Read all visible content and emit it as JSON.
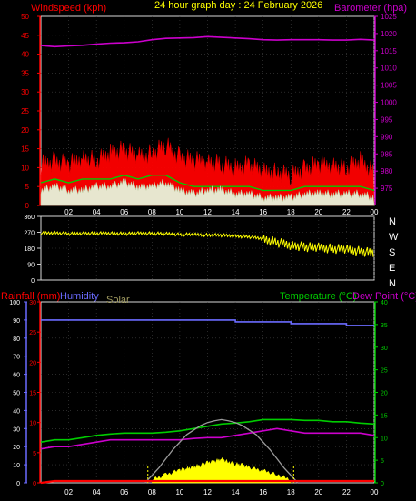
{
  "header": {
    "left_title": "Windspeed (kph)",
    "center_title": "24 hour graph day : 24 February 2026",
    "right_title": "Barometer (hpa)"
  },
  "bottom_header": {
    "rainfall": "Rainfall (mm)",
    "humidity": "Humidity",
    "solar": "Solar",
    "temperature": "Temperature (°C)",
    "dewpoint": "Dew Point (°C)"
  },
  "compass": [
    "N",
    "W",
    "S",
    "E",
    "N"
  ],
  "colors": {
    "wind": "#ff0000",
    "gust": "#ff0000",
    "wind_avg": "#e6ffe6",
    "wind_green": "#00cc00",
    "barometer": "#cc00cc",
    "direction": "#ffff00",
    "humidity": "#6b6bff",
    "temperature": "#00cc00",
    "dewpoint": "#cc00cc",
    "rain": "#ff0000",
    "solar": "#ffff00",
    "solar_theory": "#9a9a9a",
    "grid": "#ffffff",
    "axis_left": "#ff0000",
    "axis_right": "#cc00cc",
    "axis_temp": "#00cc00",
    "axis_hum": "#6b6bff"
  },
  "chart_data": [
    {
      "type": "line",
      "name": "wind-barometer",
      "title": "24 hour graph day : 24 February 2026",
      "x_ticks": [
        "02",
        "04",
        "06",
        "08",
        "10",
        "12",
        "14",
        "16",
        "18",
        "20",
        "22",
        "00"
      ],
      "xlim": [
        0,
        24
      ],
      "y_left": {
        "label": "Windspeed (kph)",
        "range": [
          0,
          50
        ],
        "ticks": [
          0,
          5,
          10,
          15,
          20,
          25,
          30,
          35,
          40,
          45,
          50
        ]
      },
      "y_right": {
        "label": "Barometer (hpa)",
        "range": [
          970,
          1025
        ],
        "ticks": [
          975,
          980,
          985,
          990,
          995,
          1000,
          1005,
          1010,
          1015,
          1020,
          1025
        ]
      },
      "series": [
        {
          "axis": "right",
          "x": [
            0,
            1,
            2,
            3,
            4,
            5,
            6,
            7,
            8,
            9,
            10,
            11,
            12,
            13,
            14,
            15,
            16,
            17,
            18,
            19,
            20,
            21,
            22,
            23,
            24
          ],
          "y": [
            1016.5,
            1016.2,
            1016.4,
            1016.6,
            1016.9,
            1017.2,
            1017.3,
            1017.6,
            1018.2,
            1018.6,
            1018.7,
            1018.8,
            1019.1,
            1018.9,
            1018.7,
            1018.5,
            1018.2,
            1018.1,
            1018.2,
            1018.2,
            1018.2,
            1018.1,
            1018.1,
            1018.3,
            1018.1
          ]
        },
        {
          "axis": "left",
          "x": [
            0,
            1,
            2,
            3,
            4,
            5,
            6,
            7,
            8,
            9,
            10,
            11,
            12,
            13,
            14,
            15,
            16,
            17,
            18,
            19,
            20,
            21,
            22,
            23,
            24
          ],
          "y": [
            10,
            11,
            10,
            12,
            11,
            13,
            14,
            12,
            13,
            15,
            12,
            11,
            11,
            10,
            9,
            10,
            8,
            8,
            7,
            9,
            10,
            10,
            9,
            11,
            8
          ]
        },
        {
          "axis": "left",
          "x": [
            0,
            1,
            2,
            3,
            4,
            5,
            6,
            7,
            8,
            9,
            10,
            11,
            12,
            13,
            14,
            15,
            16,
            17,
            18,
            19,
            20,
            21,
            22,
            23,
            24
          ],
          "y": [
            4,
            5,
            4,
            4,
            5,
            5,
            6,
            5,
            5,
            6,
            4,
            3,
            4,
            4,
            3,
            3,
            2,
            2,
            2,
            3,
            3,
            3,
            3,
            3,
            2
          ]
        },
        {
          "axis": "left",
          "x": [
            0,
            1,
            2,
            3,
            4,
            5,
            6,
            7,
            8,
            9,
            10,
            11,
            12,
            13,
            14,
            15,
            16,
            17,
            18,
            19,
            20,
            21,
            22,
            23,
            24
          ],
          "y": [
            6,
            7,
            6,
            7,
            7,
            7,
            8,
            7,
            8,
            8,
            6,
            5,
            5,
            5,
            5,
            5,
            4,
            4,
            4,
            5,
            5,
            5,
            5,
            5,
            4
          ]
        }
      ]
    },
    {
      "type": "scatter",
      "name": "wind-direction",
      "x_ticks": [
        "02",
        "04",
        "06",
        "08",
        "10",
        "12",
        "14",
        "16",
        "18",
        "20",
        "22",
        "00"
      ],
      "xlim": [
        0,
        24
      ],
      "ylim": [
        0,
        360
      ],
      "y_ticks": [
        0,
        90,
        180,
        270,
        360
      ],
      "series": [
        {
          "x": [
            0,
            1,
            2,
            3,
            4,
            5,
            6,
            7,
            8,
            9,
            10,
            11,
            12,
            13,
            14,
            15,
            16,
            17,
            18,
            19,
            20,
            21,
            22,
            23,
            24
          ],
          "y": [
            265,
            268,
            262,
            265,
            264,
            266,
            262,
            265,
            264,
            262,
            258,
            258,
            255,
            254,
            250,
            245,
            235,
            215,
            200,
            190,
            185,
            180,
            175,
            165,
            155
          ]
        }
      ]
    },
    {
      "type": "line",
      "name": "temp-humidity-rain-solar",
      "x_ticks": [
        "02",
        "04",
        "06",
        "08",
        "10",
        "12",
        "14",
        "16",
        "18",
        "20",
        "22",
        "00"
      ],
      "xlim": [
        0,
        24
      ],
      "y_left": {
        "label": "Rainfall (mm)",
        "range": [
          0,
          30
        ],
        "ticks": [
          0,
          5,
          10,
          15,
          20,
          25,
          30
        ]
      },
      "y_left2": {
        "label": "Humidity",
        "range": [
          0,
          100
        ],
        "ticks": [
          0,
          10,
          20,
          30,
          40,
          50,
          60,
          70,
          80,
          90,
          100
        ]
      },
      "y_right": {
        "label": "Temperature (°C)",
        "range": [
          0,
          40
        ],
        "ticks": [
          0,
          5,
          10,
          15,
          20,
          25,
          30,
          35,
          40
        ]
      },
      "series": [
        {
          "axis": "left2",
          "x": [
            0,
            2,
            4,
            6,
            8,
            10,
            12,
            14,
            16,
            18,
            20,
            22,
            24
          ],
          "y": [
            90,
            90,
            90,
            90,
            90,
            90,
            90,
            89,
            89,
            88,
            88,
            87,
            87
          ]
        },
        {
          "axis": "right",
          "x": [
            0,
            1,
            2,
            3,
            4,
            5,
            6,
            7,
            8,
            9,
            10,
            11,
            12,
            13,
            14,
            15,
            16,
            17,
            18,
            19,
            20,
            21,
            22,
            23,
            24
          ],
          "y": [
            9,
            9.5,
            9.5,
            10,
            10.5,
            10.8,
            11,
            11,
            11,
            11.2,
            11.5,
            12,
            12.5,
            13,
            13.2,
            13.5,
            14,
            14,
            14,
            13.8,
            13.8,
            13.5,
            13.5,
            13.2,
            13
          ]
        },
        {
          "axis": "right",
          "x": [
            0,
            1,
            2,
            3,
            4,
            5,
            6,
            7,
            8,
            9,
            10,
            11,
            12,
            13,
            14,
            15,
            16,
            17,
            18,
            19,
            20,
            21,
            22,
            23,
            24
          ],
          "y": [
            7.5,
            8,
            8,
            8.5,
            9,
            9.5,
            9.5,
            9.5,
            9.5,
            9.5,
            9.5,
            9.8,
            10,
            10,
            10.5,
            11,
            11.5,
            12,
            11.5,
            11,
            11,
            11,
            11,
            11,
            10.5
          ]
        },
        {
          "axis": "left",
          "x": [
            0,
            1,
            2,
            3,
            4,
            5,
            6,
            7,
            8,
            9,
            10,
            11,
            12,
            13,
            14,
            15,
            16,
            17,
            18,
            19,
            20,
            21,
            22,
            23,
            24
          ],
          "y": [
            0,
            0.3,
            0.3,
            0.3,
            0.3,
            0.3,
            0.3,
            0.3,
            0.3,
            0.3,
            0.3,
            0.3,
            0.3,
            0.3,
            0.3,
            0.3,
            0.3,
            0.3,
            0.3,
            0.3,
            0.3,
            0.3,
            0.3,
            0.3,
            0.3
          ]
        },
        {
          "axis": "left",
          "x": [
            7.5,
            8.5,
            9.5,
            10.5,
            11.5,
            12,
            12.5,
            13,
            13.5,
            14,
            14.5,
            15.5,
            16.5,
            17.5,
            18.5
          ],
          "y": [
            0,
            2.5,
            5.5,
            8,
            9.5,
            10,
            10.3,
            10.5,
            10.3,
            10,
            9.5,
            8,
            5.5,
            2.5,
            0
          ]
        },
        {
          "axis": "left",
          "x": [
            8,
            9,
            10,
            10.5,
            11,
            11.5,
            12,
            12.5,
            13,
            13.5,
            14,
            14.5,
            15,
            16,
            17,
            18
          ],
          "y": [
            0.2,
            1.0,
            1.8,
            2.0,
            2.3,
            2.6,
            3.0,
            3.2,
            3.6,
            3.1,
            2.8,
            2.6,
            2.2,
            1.7,
            1.0,
            0.2
          ]
        }
      ]
    }
  ]
}
